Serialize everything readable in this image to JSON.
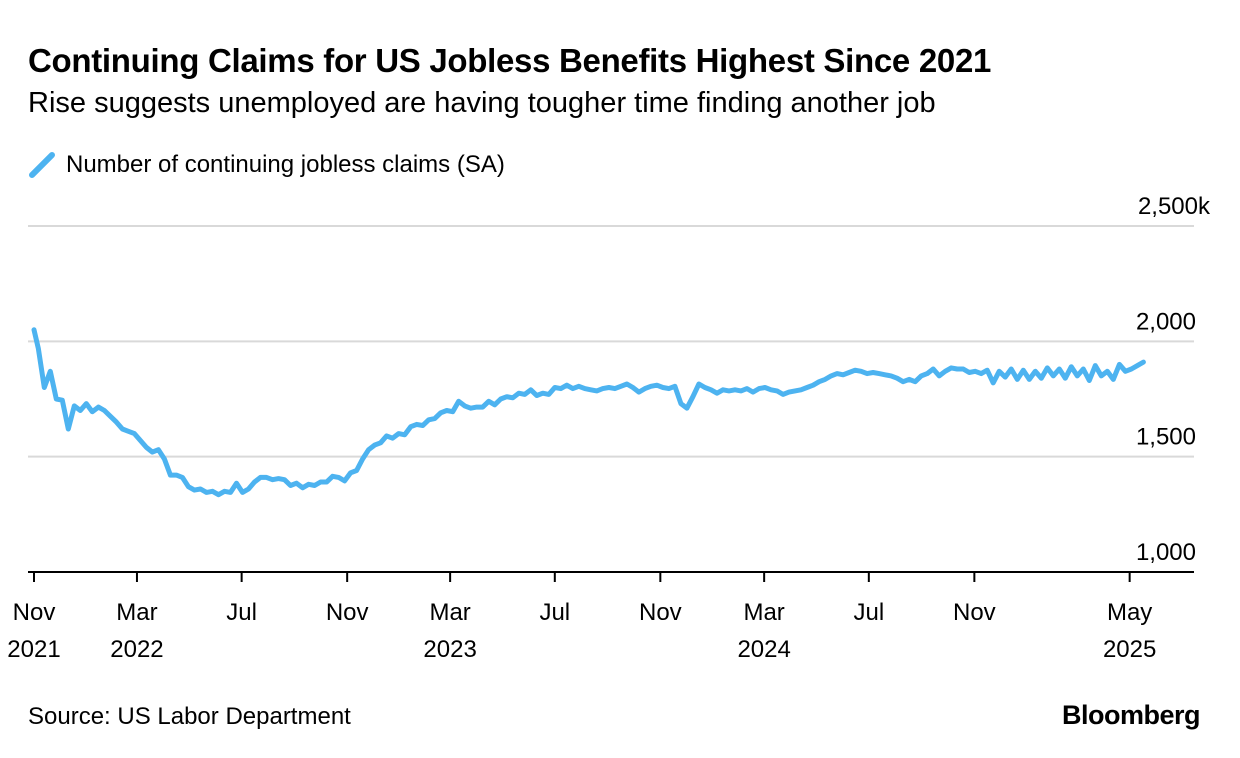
{
  "header": {
    "title": "Continuing Claims for US Jobless Benefits Highest Since 2021",
    "subtitle": "Rise suggests unemployed are having tougher time finding another job"
  },
  "footer": {
    "source": "Source: US Labor Department",
    "brand": "Bloomberg"
  },
  "colors": {
    "series": "#4db3f0",
    "grid": "#d9d9d9",
    "axis": "#000000"
  },
  "chart_data": {
    "type": "line",
    "legend_position": "top-left",
    "grid": true,
    "ylim": [
      1000,
      2500
    ],
    "y_ticks": [
      {
        "value": 2500,
        "label": "2,500k"
      },
      {
        "value": 2000,
        "label": "2,000"
      },
      {
        "value": 1500,
        "label": "1,500"
      },
      {
        "value": 1000,
        "label": "1,000"
      }
    ],
    "x_range": [
      "2021-10-25",
      "2025-07-15"
    ],
    "x_ticks": [
      {
        "date": "2021-11-01",
        "label": "Nov",
        "year": "2021"
      },
      {
        "date": "2022-03-01",
        "label": "Mar",
        "year": "2022"
      },
      {
        "date": "2022-07-01",
        "label": "Jul",
        "year": ""
      },
      {
        "date": "2022-11-01",
        "label": "Nov",
        "year": ""
      },
      {
        "date": "2023-03-01",
        "label": "Mar",
        "year": "2023"
      },
      {
        "date": "2023-07-01",
        "label": "Jul",
        "year": ""
      },
      {
        "date": "2023-11-01",
        "label": "Nov",
        "year": ""
      },
      {
        "date": "2024-03-01",
        "label": "Mar",
        "year": "2024"
      },
      {
        "date": "2024-07-01",
        "label": "Jul",
        "year": ""
      },
      {
        "date": "2024-11-01",
        "label": "Nov",
        "year": ""
      },
      {
        "date": "2025-05-01",
        "label": "May",
        "year": "2025"
      }
    ],
    "series": [
      {
        "name": "Number of continuing jobless claims (SA)",
        "points": [
          [
            "2021-11-01",
            2050
          ],
          [
            "2021-11-06",
            1970
          ],
          [
            "2021-11-13",
            1800
          ],
          [
            "2021-11-20",
            1870
          ],
          [
            "2021-11-27",
            1750
          ],
          [
            "2021-12-04",
            1745
          ],
          [
            "2021-12-11",
            1620
          ],
          [
            "2021-12-18",
            1720
          ],
          [
            "2021-12-25",
            1700
          ],
          [
            "2022-01-01",
            1730
          ],
          [
            "2022-01-08",
            1695
          ],
          [
            "2022-01-15",
            1715
          ],
          [
            "2022-01-22",
            1700
          ],
          [
            "2022-01-29",
            1675
          ],
          [
            "2022-02-05",
            1650
          ],
          [
            "2022-02-12",
            1620
          ],
          [
            "2022-02-19",
            1610
          ],
          [
            "2022-02-26",
            1600
          ],
          [
            "2022-03-05",
            1570
          ],
          [
            "2022-03-12",
            1540
          ],
          [
            "2022-03-19",
            1520
          ],
          [
            "2022-03-26",
            1530
          ],
          [
            "2022-04-02",
            1490
          ],
          [
            "2022-04-09",
            1420
          ],
          [
            "2022-04-16",
            1420
          ],
          [
            "2022-04-23",
            1410
          ],
          [
            "2022-04-30",
            1370
          ],
          [
            "2022-05-07",
            1355
          ],
          [
            "2022-05-14",
            1360
          ],
          [
            "2022-05-21",
            1345
          ],
          [
            "2022-05-28",
            1350
          ],
          [
            "2022-06-04",
            1335
          ],
          [
            "2022-06-11",
            1350
          ],
          [
            "2022-06-18",
            1345
          ],
          [
            "2022-06-25",
            1385
          ],
          [
            "2022-07-02",
            1345
          ],
          [
            "2022-07-09",
            1360
          ],
          [
            "2022-07-16",
            1390
          ],
          [
            "2022-07-23",
            1410
          ],
          [
            "2022-07-30",
            1410
          ],
          [
            "2022-08-06",
            1400
          ],
          [
            "2022-08-13",
            1405
          ],
          [
            "2022-08-20",
            1400
          ],
          [
            "2022-08-27",
            1375
          ],
          [
            "2022-09-03",
            1385
          ],
          [
            "2022-09-10",
            1365
          ],
          [
            "2022-09-17",
            1380
          ],
          [
            "2022-09-24",
            1375
          ],
          [
            "2022-10-01",
            1390
          ],
          [
            "2022-10-08",
            1390
          ],
          [
            "2022-10-15",
            1415
          ],
          [
            "2022-10-22",
            1410
          ],
          [
            "2022-10-29",
            1395
          ],
          [
            "2022-11-05",
            1430
          ],
          [
            "2022-11-12",
            1440
          ],
          [
            "2022-11-19",
            1490
          ],
          [
            "2022-11-26",
            1530
          ],
          [
            "2022-12-03",
            1550
          ],
          [
            "2022-12-10",
            1560
          ],
          [
            "2022-12-17",
            1590
          ],
          [
            "2022-12-24",
            1580
          ],
          [
            "2022-12-31",
            1600
          ],
          [
            "2023-01-07",
            1595
          ],
          [
            "2023-01-14",
            1630
          ],
          [
            "2023-01-21",
            1640
          ],
          [
            "2023-01-28",
            1635
          ],
          [
            "2023-02-04",
            1660
          ],
          [
            "2023-02-11",
            1665
          ],
          [
            "2023-02-18",
            1690
          ],
          [
            "2023-02-25",
            1700
          ],
          [
            "2023-03-04",
            1695
          ],
          [
            "2023-03-11",
            1740
          ],
          [
            "2023-03-18",
            1720
          ],
          [
            "2023-03-25",
            1710
          ],
          [
            "2023-04-01",
            1715
          ],
          [
            "2023-04-08",
            1715
          ],
          [
            "2023-04-15",
            1740
          ],
          [
            "2023-04-22",
            1725
          ],
          [
            "2023-04-29",
            1750
          ],
          [
            "2023-05-06",
            1760
          ],
          [
            "2023-05-13",
            1755
          ],
          [
            "2023-05-20",
            1775
          ],
          [
            "2023-05-27",
            1770
          ],
          [
            "2023-06-03",
            1790
          ],
          [
            "2023-06-10",
            1765
          ],
          [
            "2023-06-17",
            1775
          ],
          [
            "2023-06-24",
            1770
          ],
          [
            "2023-07-01",
            1800
          ],
          [
            "2023-07-08",
            1795
          ],
          [
            "2023-07-15",
            1810
          ],
          [
            "2023-07-22",
            1795
          ],
          [
            "2023-07-29",
            1805
          ],
          [
            "2023-08-05",
            1795
          ],
          [
            "2023-08-12",
            1790
          ],
          [
            "2023-08-19",
            1785
          ],
          [
            "2023-08-26",
            1795
          ],
          [
            "2023-09-02",
            1800
          ],
          [
            "2023-09-09",
            1795
          ],
          [
            "2023-09-16",
            1805
          ],
          [
            "2023-09-23",
            1815
          ],
          [
            "2023-09-30",
            1800
          ],
          [
            "2023-10-07",
            1780
          ],
          [
            "2023-10-14",
            1795
          ],
          [
            "2023-10-21",
            1805
          ],
          [
            "2023-10-28",
            1810
          ],
          [
            "2023-11-04",
            1800
          ],
          [
            "2023-11-11",
            1795
          ],
          [
            "2023-11-18",
            1805
          ],
          [
            "2023-11-25",
            1730
          ],
          [
            "2023-12-02",
            1710
          ],
          [
            "2023-12-09",
            1760
          ],
          [
            "2023-12-16",
            1815
          ],
          [
            "2023-12-23",
            1800
          ],
          [
            "2023-12-30",
            1790
          ],
          [
            "2024-01-06",
            1775
          ],
          [
            "2024-01-13",
            1790
          ],
          [
            "2024-01-20",
            1785
          ],
          [
            "2024-01-27",
            1790
          ],
          [
            "2024-02-03",
            1785
          ],
          [
            "2024-02-10",
            1795
          ],
          [
            "2024-02-17",
            1780
          ],
          [
            "2024-02-24",
            1795
          ],
          [
            "2024-03-02",
            1800
          ],
          [
            "2024-03-09",
            1790
          ],
          [
            "2024-03-16",
            1785
          ],
          [
            "2024-03-23",
            1770
          ],
          [
            "2024-03-30",
            1780
          ],
          [
            "2024-04-06",
            1785
          ],
          [
            "2024-04-13",
            1790
          ],
          [
            "2024-04-20",
            1800
          ],
          [
            "2024-04-27",
            1810
          ],
          [
            "2024-05-04",
            1825
          ],
          [
            "2024-05-11",
            1835
          ],
          [
            "2024-05-18",
            1850
          ],
          [
            "2024-05-25",
            1860
          ],
          [
            "2024-06-01",
            1855
          ],
          [
            "2024-06-08",
            1865
          ],
          [
            "2024-06-15",
            1875
          ],
          [
            "2024-06-22",
            1870
          ],
          [
            "2024-06-29",
            1860
          ],
          [
            "2024-07-06",
            1865
          ],
          [
            "2024-07-13",
            1860
          ],
          [
            "2024-07-20",
            1855
          ],
          [
            "2024-07-27",
            1850
          ],
          [
            "2024-08-03",
            1840
          ],
          [
            "2024-08-10",
            1825
          ],
          [
            "2024-08-17",
            1835
          ],
          [
            "2024-08-24",
            1825
          ],
          [
            "2024-08-31",
            1850
          ],
          [
            "2024-09-07",
            1860
          ],
          [
            "2024-09-14",
            1880
          ],
          [
            "2024-09-21",
            1850
          ],
          [
            "2024-09-28",
            1870
          ],
          [
            "2024-10-05",
            1885
          ],
          [
            "2024-10-12",
            1880
          ],
          [
            "2024-10-19",
            1880
          ],
          [
            "2024-10-26",
            1865
          ],
          [
            "2024-11-02",
            1870
          ],
          [
            "2024-11-09",
            1860
          ],
          [
            "2024-11-16",
            1875
          ],
          [
            "2024-11-23",
            1820
          ],
          [
            "2024-11-30",
            1870
          ],
          [
            "2024-12-07",
            1845
          ],
          [
            "2024-12-14",
            1880
          ],
          [
            "2024-12-21",
            1835
          ],
          [
            "2024-12-28",
            1875
          ],
          [
            "2025-01-04",
            1835
          ],
          [
            "2025-01-11",
            1870
          ],
          [
            "2025-01-18",
            1840
          ],
          [
            "2025-01-25",
            1885
          ],
          [
            "2025-02-01",
            1850
          ],
          [
            "2025-02-08",
            1880
          ],
          [
            "2025-02-15",
            1840
          ],
          [
            "2025-02-22",
            1890
          ],
          [
            "2025-03-01",
            1850
          ],
          [
            "2025-03-08",
            1880
          ],
          [
            "2025-03-15",
            1830
          ],
          [
            "2025-03-22",
            1895
          ],
          [
            "2025-03-29",
            1850
          ],
          [
            "2025-04-05",
            1870
          ],
          [
            "2025-04-12",
            1835
          ],
          [
            "2025-04-19",
            1900
          ],
          [
            "2025-04-26",
            1870
          ],
          [
            "2025-05-03",
            1880
          ],
          [
            "2025-05-10",
            1895
          ],
          [
            "2025-05-17",
            1910
          ]
        ]
      }
    ]
  }
}
